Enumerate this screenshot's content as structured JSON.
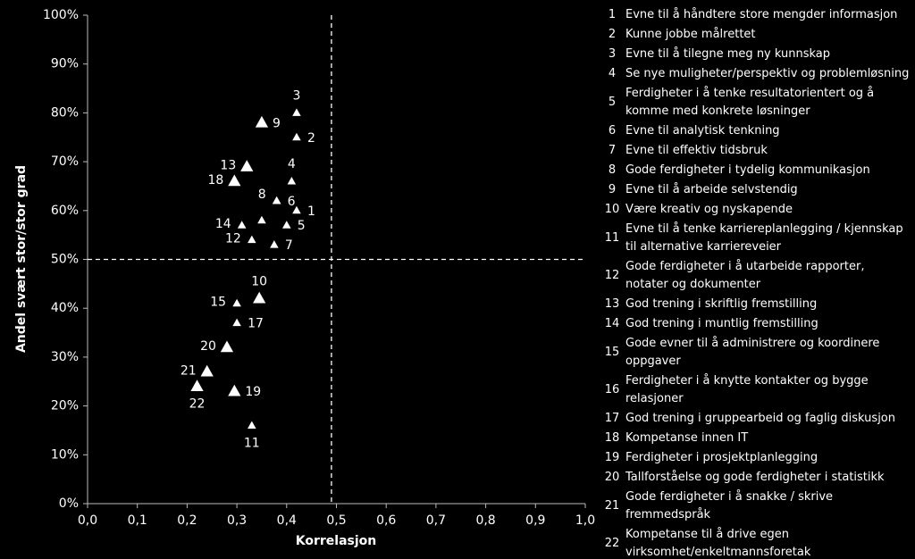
{
  "chart_data": {
    "type": "scatter",
    "x_label": "Korrelasjon",
    "y_label": "Andel svært stor/stor grad",
    "xlim": [
      0,
      1
    ],
    "ylim": [
      0,
      100
    ],
    "xticks": [
      {
        "value": 0,
        "label": "0,0"
      },
      {
        "value": 0.1,
        "label": "0,1"
      },
      {
        "value": 0.2,
        "label": "0,2"
      },
      {
        "value": 0.3,
        "label": "0,3"
      },
      {
        "value": 0.4,
        "label": "0,4"
      },
      {
        "value": 0.5,
        "label": "0,5"
      },
      {
        "value": 0.6,
        "label": "0,6"
      },
      {
        "value": 0.7,
        "label": "0,7"
      },
      {
        "value": 0.8,
        "label": "0,8"
      },
      {
        "value": 0.9,
        "label": "0,9"
      },
      {
        "value": 1,
        "label": "1,0"
      }
    ],
    "yticks": [
      {
        "value": 0,
        "label": "0%"
      },
      {
        "value": 10,
        "label": "10%"
      },
      {
        "value": 20,
        "label": "20%"
      },
      {
        "value": 30,
        "label": "30%"
      },
      {
        "value": 40,
        "label": "40%"
      },
      {
        "value": 50,
        "label": "50%"
      },
      {
        "value": 60,
        "label": "60%"
      },
      {
        "value": 70,
        "label": "70%"
      },
      {
        "value": 80,
        "label": "80%"
      },
      {
        "value": 90,
        "label": "90%"
      },
      {
        "value": 100,
        "label": "100%"
      }
    ],
    "reference_lines": {
      "x": 0.49,
      "y": 50
    },
    "color": "#ffffff",
    "points": [
      {
        "label": 3,
        "x": 0.42,
        "y": 80,
        "marker": "small",
        "label_pos": "above"
      },
      {
        "label": 9,
        "x": 0.35,
        "y": 78,
        "marker": "large",
        "label_pos": "right"
      },
      {
        "label": 2,
        "x": 0.42,
        "y": 75,
        "marker": "small",
        "label_pos": "right"
      },
      {
        "label": 13,
        "x": 0.32,
        "y": 69,
        "marker": "large",
        "label_pos": "left"
      },
      {
        "label": 4,
        "x": 0.41,
        "y": 66,
        "marker": "small",
        "label_pos": "above"
      },
      {
        "label": 18,
        "x": 0.295,
        "y": 66,
        "marker": "large",
        "label_pos": "left"
      },
      {
        "label": 8,
        "x": 0.38,
        "y": 62,
        "marker": "small",
        "label_pos": "aboveleft"
      },
      {
        "label": 6,
        "x": 0.38,
        "y": 62,
        "marker": "small",
        "label_pos": "aboveright"
      },
      {
        "label": 1,
        "x": 0.42,
        "y": 60,
        "marker": "small",
        "label_pos": "right"
      },
      {
        "label": 14,
        "x": 0.31,
        "y": 57,
        "marker": "small",
        "label_pos": "left"
      },
      {
        "x": 0.35,
        "y": 58,
        "marker": "small",
        "label_pos": "none",
        "label": null
      },
      {
        "label": 5,
        "x": 0.4,
        "y": 57,
        "marker": "small",
        "label_pos": "right"
      },
      {
        "label": 12,
        "x": 0.33,
        "y": 54,
        "marker": "small",
        "label_pos": "left"
      },
      {
        "label": 7,
        "x": 0.375,
        "y": 53,
        "marker": "small",
        "label_pos": "right"
      },
      {
        "label": 10,
        "x": 0.345,
        "y": 42,
        "marker": "large",
        "label_pos": "above"
      },
      {
        "label": 15,
        "x": 0.3,
        "y": 41,
        "marker": "small",
        "label_pos": "left"
      },
      {
        "label": 17,
        "x": 0.3,
        "y": 37,
        "marker": "small",
        "label_pos": "right"
      },
      {
        "label": 20,
        "x": 0.28,
        "y": 32,
        "marker": "large",
        "label_pos": "left"
      },
      {
        "label": 21,
        "x": 0.24,
        "y": 27,
        "marker": "large",
        "label_pos": "left"
      },
      {
        "label": 22,
        "x": 0.22,
        "y": 24,
        "marker": "large",
        "label_pos": "below"
      },
      {
        "label": 19,
        "x": 0.295,
        "y": 23,
        "marker": "large",
        "label_pos": "right"
      },
      {
        "label": 11,
        "x": 0.33,
        "y": 16,
        "marker": "small",
        "label_pos": "below"
      }
    ],
    "legend_items": [
      {
        "number": 1,
        "text": "Evne til å håndtere store mengder informasjon"
      },
      {
        "number": 2,
        "text": "Kunne jobbe målrettet"
      },
      {
        "number": 3,
        "text": "Evne til å tilegne meg ny kunnskap"
      },
      {
        "number": 4,
        "text": "Se nye muligheter/perspektiv og problemløsning"
      },
      {
        "number": 5,
        "text": "Ferdigheter i å tenke resultatorientert og å komme med konkrete løsninger"
      },
      {
        "number": 6,
        "text": "Evne til analytisk tenkning"
      },
      {
        "number": 7,
        "text": "Evne til effektiv tidsbruk"
      },
      {
        "number": 8,
        "text": "Gode ferdigheter i tydelig kommunikasjon"
      },
      {
        "number": 9,
        "text": "Evne til å arbeide selvstendig"
      },
      {
        "number": 10,
        "text": "Være kreativ og nyskapende"
      },
      {
        "number": 11,
        "text": "Evne til å tenke karriereplanlegging / kjennskap til alternative karriereveier"
      },
      {
        "number": 12,
        "text": "Gode ferdigheter i å utarbeide rapporter, notater og dokumenter"
      },
      {
        "number": 13,
        "text": "God trening i skriftlig fremstilling"
      },
      {
        "number": 14,
        "text": "God trening i muntlig fremstilling"
      },
      {
        "number": 15,
        "text": "Gode evner til å administrere og koordinere oppgaver"
      },
      {
        "number": 16,
        "text": "Ferdigheter i å knytte kontakter og bygge relasjoner"
      },
      {
        "number": 17,
        "text": "God trening i gruppearbeid og faglig diskusjon"
      },
      {
        "number": 18,
        "text": "Kompetanse innen IT"
      },
      {
        "number": 19,
        "text": "Ferdigheter i prosjektplanlegging"
      },
      {
        "number": 20,
        "text": "Tallforståelse og gode ferdigheter i statistikk"
      },
      {
        "number": 21,
        "text": "Gode ferdigheter i å snakke / skrive fremmedspråk"
      },
      {
        "number": 22,
        "text": "Kompetanse til å drive egen virksomhet/enkeltmannsforetak"
      }
    ]
  }
}
